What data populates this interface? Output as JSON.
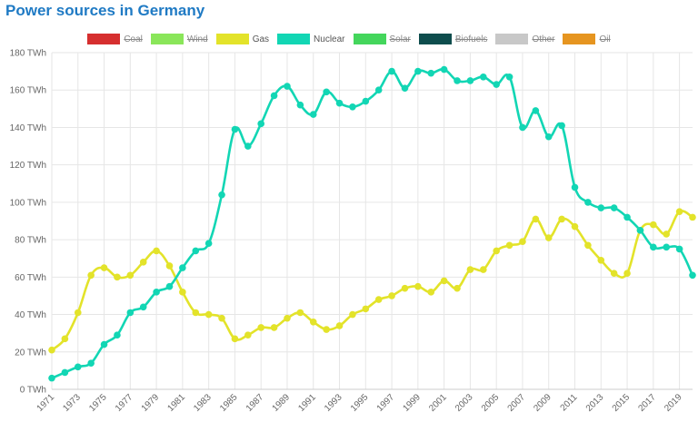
{
  "header": {
    "title": "Power sources in Germany"
  },
  "chart_data": {
    "type": "line",
    "title": "Power sources in Germany",
    "xlabel": "",
    "ylabel": "",
    "ylim": [
      0,
      180
    ],
    "y_ticks": [
      "0 TWh",
      "20 TWh",
      "40 TWh",
      "60 TWh",
      "80 TWh",
      "100 TWh",
      "120 TWh",
      "140 TWh",
      "160 TWh",
      "180 TWh"
    ],
    "y_tick_values": [
      0,
      20,
      40,
      60,
      80,
      100,
      120,
      140,
      160,
      180
    ],
    "x_tick_labels": [
      "1971",
      "1973",
      "1975",
      "1977",
      "1979",
      "1981",
      "1983",
      "1985",
      "1987",
      "1989",
      "1991",
      "1993",
      "1995",
      "1997",
      "1999",
      "2001",
      "2003",
      "2005",
      "2007",
      "2009",
      "2011",
      "2013",
      "2015",
      "2017",
      "2019"
    ],
    "x": [
      1971,
      1972,
      1973,
      1974,
      1975,
      1976,
      1977,
      1978,
      1979,
      1980,
      1981,
      1982,
      1983,
      1984,
      1985,
      1986,
      1987,
      1988,
      1989,
      1990,
      1991,
      1992,
      1993,
      1994,
      1995,
      1996,
      1997,
      1998,
      1999,
      2000,
      2001,
      2002,
      2003,
      2004,
      2005,
      2006,
      2007,
      2008,
      2009,
      2010,
      2011,
      2012,
      2013,
      2014,
      2015,
      2016,
      2017,
      2018,
      2019,
      2020
    ],
    "grid": true,
    "legend_position": "top",
    "legend": [
      {
        "name": "Coal",
        "color": "#d62f2f",
        "hidden": true
      },
      {
        "name": "Wind",
        "color": "#8ae65a",
        "hidden": true
      },
      {
        "name": "Gas",
        "color": "#e3e32a",
        "hidden": false
      },
      {
        "name": "Nuclear",
        "color": "#12d6b4",
        "hidden": false
      },
      {
        "name": "Solar",
        "color": "#44d65c",
        "hidden": true
      },
      {
        "name": "Biofuels",
        "color": "#0e4d4d",
        "hidden": true
      },
      {
        "name": "Other",
        "color": "#c8c8c8",
        "hidden": true
      },
      {
        "name": "Oil",
        "color": "#e69520",
        "hidden": true
      }
    ],
    "series": [
      {
        "name": "Gas",
        "color": "#e3e32a",
        "values": [
          21,
          27,
          41,
          61,
          65,
          60,
          61,
          68,
          74,
          66,
          52,
          41,
          40,
          38,
          27,
          29,
          33,
          33,
          38,
          41,
          36,
          32,
          34,
          40,
          43,
          48,
          50,
          54,
          55,
          52,
          58,
          54,
          64,
          64,
          74,
          77,
          79,
          91,
          81,
          91,
          87,
          77,
          69,
          62,
          62,
          85,
          88,
          83,
          95,
          92
        ]
      },
      {
        "name": "Nuclear",
        "color": "#12d6b4",
        "values": [
          6,
          9,
          12,
          14,
          24,
          29,
          41,
          44,
          52,
          55,
          65,
          74,
          78,
          104,
          139,
          130,
          142,
          157,
          162,
          152,
          147,
          159,
          153,
          151,
          154,
          160,
          170,
          161,
          170,
          169,
          171,
          165,
          165,
          167,
          163,
          167,
          140,
          149,
          135,
          141,
          108,
          100,
          97,
          97,
          92,
          85,
          76,
          76,
          75,
          61
        ]
      }
    ]
  }
}
